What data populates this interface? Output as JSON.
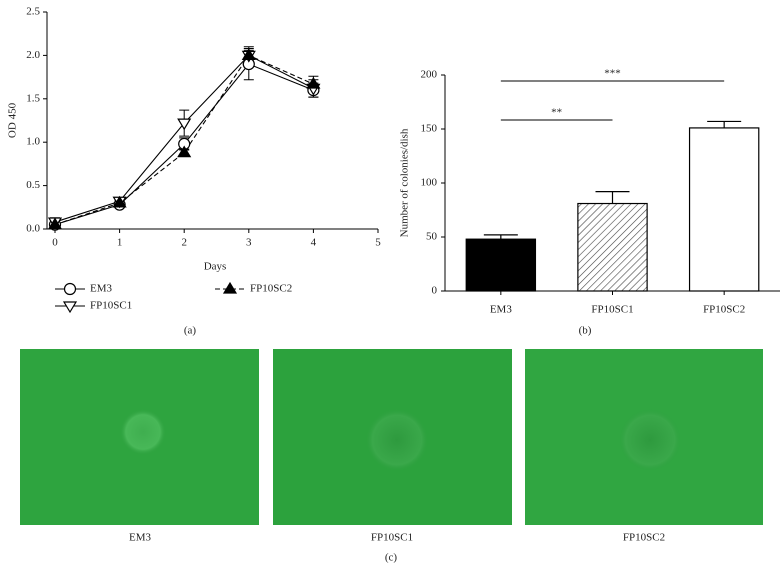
{
  "chart_data": [
    {
      "type": "line",
      "panel": "(a)",
      "xlabel": "Days",
      "ylabel": "OD 450",
      "x": [
        0,
        1,
        2,
        3,
        4
      ],
      "xlim": [
        0,
        5
      ],
      "xticks": [
        0,
        1,
        2,
        3,
        4,
        5
      ],
      "ylim": [
        0,
        2.5
      ],
      "yticks": [
        {
          "value": 0,
          "label": "0.0"
        },
        0.5,
        {
          "value": 1,
          "label": "1.0"
        },
        1.5,
        {
          "value": 2,
          "label": "2.0"
        },
        2.5
      ],
      "series": [
        {
          "name": "EM3",
          "color": "#000000",
          "marker": "circle",
          "marker_fill": "#ffffff",
          "line_style": "solid",
          "values": [
            0.05,
            0.28,
            0.98,
            1.9,
            1.6
          ],
          "errors": [
            0.03,
            0.03,
            0.07,
            0.18,
            0.08
          ]
        },
        {
          "name": "FP10SC1",
          "color": "#000000",
          "marker": "triangle-down",
          "marker_fill": "#ffffff",
          "line_style": "solid",
          "values": [
            0.08,
            0.32,
            1.22,
            2.0,
            1.62
          ],
          "errors": [
            0.05,
            0.04,
            0.15,
            0.1,
            0.1
          ]
        },
        {
          "name": "FP10SC2",
          "color": "#000000",
          "marker": "triangle-up",
          "marker_fill": "#000000",
          "line_style": "dashed",
          "values": [
            0.05,
            0.3,
            0.88,
            2.0,
            1.67
          ],
          "errors": [
            0.03,
            0.03,
            0.04,
            0.06,
            0.09
          ]
        }
      ]
    },
    {
      "type": "bar",
      "panel": "(b)",
      "ylabel": "Number of colonies/dish",
      "categories": [
        "EM3",
        "FP10SC1",
        "FP10SC2"
      ],
      "values": [
        48,
        81,
        151
      ],
      "errors": [
        4,
        11,
        6
      ],
      "fills": [
        "solid",
        "hatch",
        "open"
      ],
      "ylim": [
        0,
        200
      ],
      "yticks": [
        0,
        50,
        100,
        150,
        200
      ],
      "annotations": [
        "**",
        "***"
      ]
    }
  ],
  "figure_c": {
    "panel": "(c)",
    "captions": [
      "EM3",
      "FP10SC1",
      "FP10SC2"
    ]
  }
}
